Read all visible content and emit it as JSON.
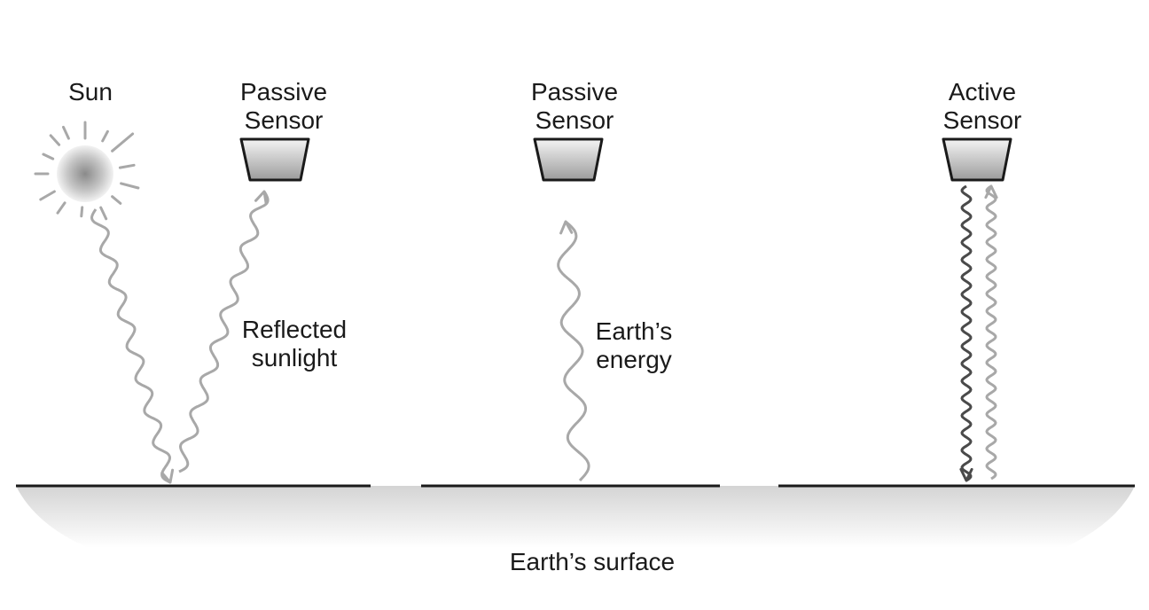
{
  "labels": {
    "sun": "Sun",
    "passive_sensor_1": [
      "Passive",
      "Sensor"
    ],
    "passive_sensor_2": [
      "Passive",
      "Sensor"
    ],
    "active_sensor": [
      "Active",
      "Sensor"
    ],
    "reflected_sunlight": [
      "Reflected",
      "sunlight"
    ],
    "earths_energy": [
      "Earth’s",
      "energy"
    ],
    "earths_surface": "Earth’s surface"
  },
  "colors": {
    "ground_line": "#1a1a1a",
    "wave_light": "#a8a8a8",
    "wave_dark": "#4a4a4a",
    "sensor_outline": "#1a1a1a",
    "ground_fill_top": "#d4d4d4"
  },
  "icons": [
    "sun-icon",
    "passive-sensor-icon",
    "active-sensor-icon"
  ]
}
